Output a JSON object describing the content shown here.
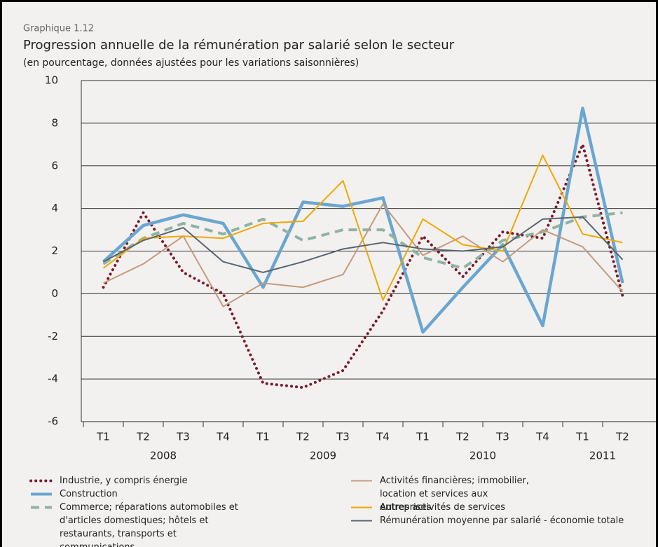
{
  "chart_data": {
    "type": "line",
    "label": "Graphique 1.12",
    "title": "Progression annuelle de la rémunération par salarié selon le secteur",
    "subtitle": "(en pourcentage, données ajustées pour les variations saisonnières)",
    "categories": [
      "T1",
      "T2",
      "T3",
      "T4",
      "T1",
      "T2",
      "T3",
      "T4",
      "T1",
      "T2",
      "T3",
      "T4",
      "T1",
      "T2"
    ],
    "x_groups": [
      {
        "label": "2008",
        "count": 4
      },
      {
        "label": "2009",
        "count": 4
      },
      {
        "label": "2010",
        "count": 4
      },
      {
        "label": "2011",
        "count": 2
      }
    ],
    "ylim": [
      -6,
      10
    ],
    "yticks": [
      -6,
      -4,
      -2,
      0,
      2,
      4,
      6,
      8,
      10
    ],
    "grid": true,
    "series": [
      {
        "name": "Industrie, y compris énergie",
        "color": "#7b1a2c",
        "style": "dotted",
        "width": 4,
        "values": [
          0.3,
          3.8,
          1.0,
          0.0,
          -4.2,
          -4.4,
          -3.6,
          -0.8,
          2.7,
          0.8,
          2.9,
          2.6,
          7.0,
          -0.1
        ]
      },
      {
        "name": "Construction",
        "color": "#6aa6d0",
        "style": "solid",
        "width": 4.5,
        "values": [
          1.5,
          3.2,
          3.7,
          3.3,
          0.3,
          4.3,
          4.1,
          4.5,
          -1.8,
          0.3,
          2.3,
          -1.5,
          8.7,
          0.5
        ]
      },
      {
        "name": "Commerce; réparations automobiles et d'articles domestiques; hôtels et restaurants, transports et communications",
        "color": "#8fb3a2",
        "style": "dashed",
        "width": 4,
        "values": [
          1.4,
          2.6,
          3.3,
          2.8,
          3.5,
          2.5,
          3.0,
          3.0,
          1.7,
          1.2,
          2.5,
          2.9,
          3.6,
          3.8
        ]
      },
      {
        "name": "Activités financières; immobilier, location et services aux entreprises",
        "color": "#c49a7e",
        "style": "solid",
        "width": 2,
        "values": [
          0.5,
          1.4,
          2.7,
          -0.6,
          0.5,
          0.3,
          0.9,
          4.2,
          1.8,
          2.7,
          1.5,
          3.0,
          2.2,
          0.1
        ]
      },
      {
        "name": "Autres activités de services",
        "color": "#f0a800",
        "style": "solid",
        "width": 2,
        "values": [
          1.2,
          2.6,
          2.7,
          2.6,
          3.3,
          3.4,
          5.3,
          -0.3,
          3.5,
          2.3,
          2.0,
          6.5,
          2.8,
          2.4
        ]
      },
      {
        "name": "Rémunération moyenne par salarié - économie totale",
        "color": "#5a6470",
        "style": "solid",
        "width": 2,
        "values": [
          1.5,
          2.5,
          3.1,
          1.5,
          1.0,
          1.5,
          2.1,
          2.4,
          2.1,
          2.0,
          2.2,
          3.5,
          3.6,
          1.6
        ]
      }
    ]
  }
}
